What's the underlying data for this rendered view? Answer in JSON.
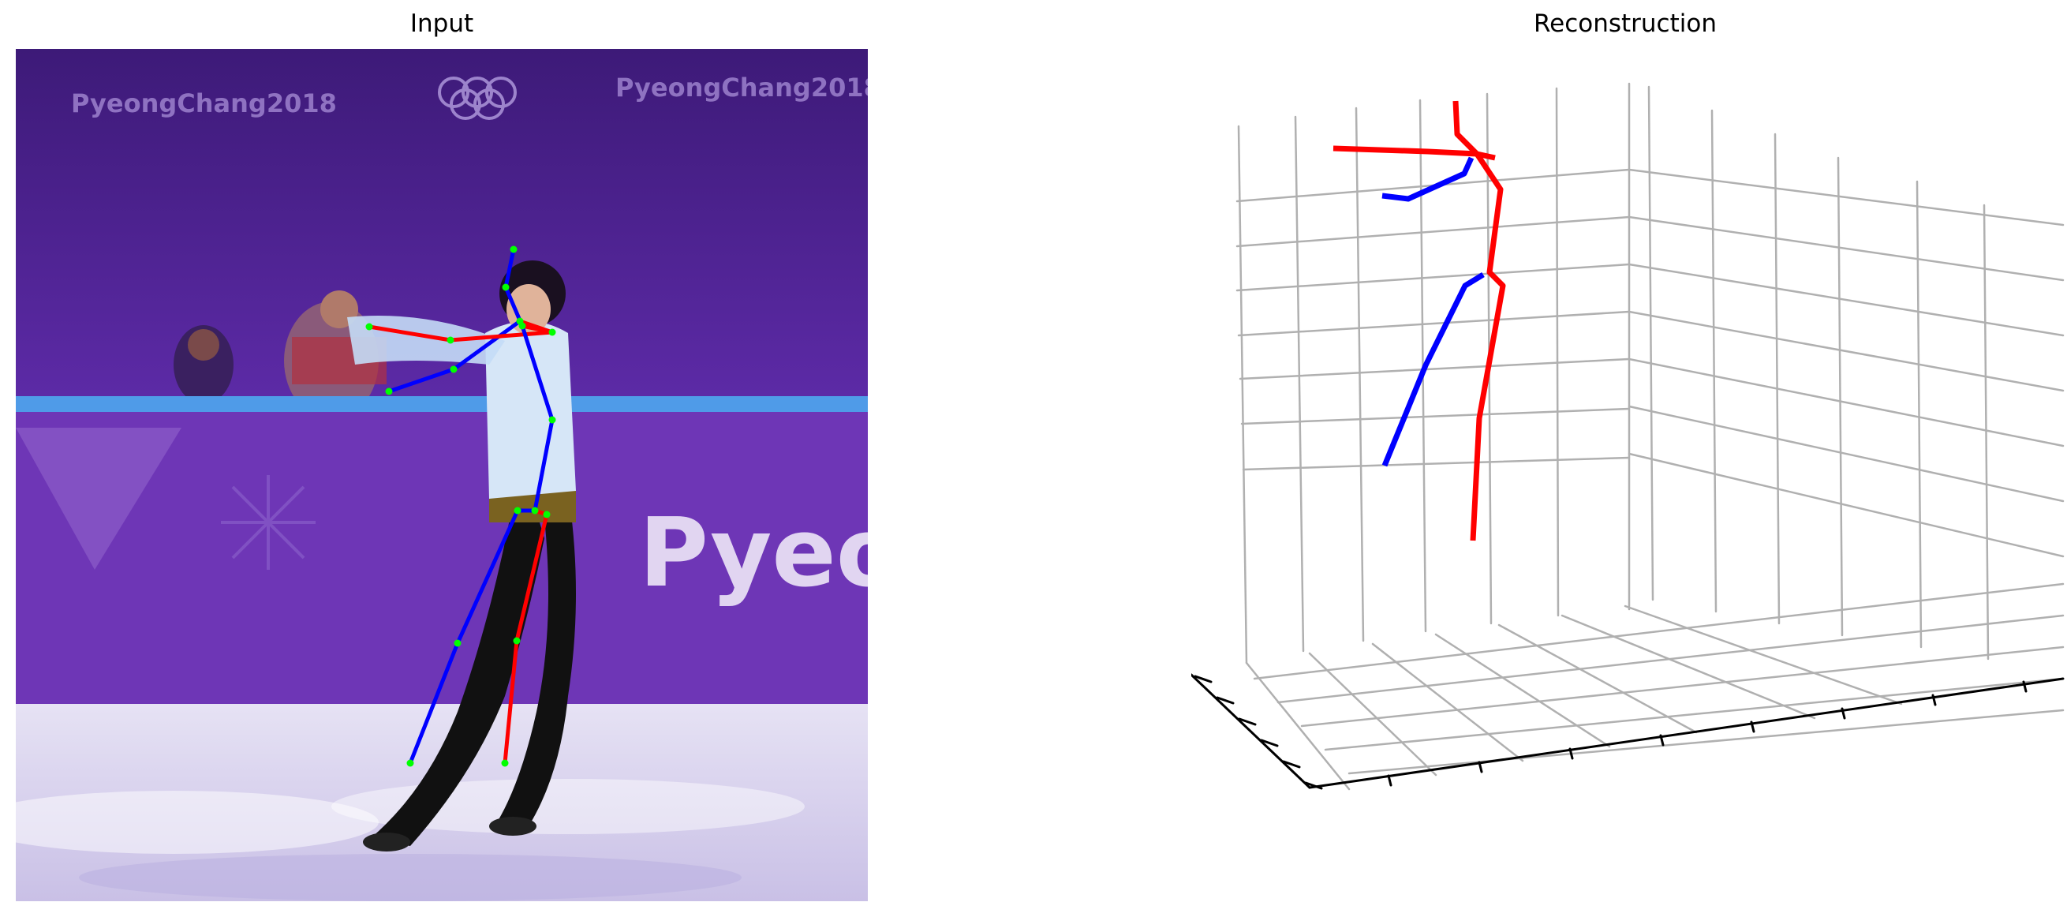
{
  "figure": {
    "input_title": "Input",
    "reconstruction_title": "Reconstruction"
  },
  "scene": {
    "banner_text": "PyeongChang2018",
    "board_text": "Pyeon",
    "colors": {
      "backdrop": "#5a2aa0",
      "board": "#6f36b8",
      "ice": "#d9d3ef",
      "skin_of_jacket": "#cfe3f5"
    }
  },
  "skeleton": {
    "colors": {
      "right": "#ff0000",
      "left": "#0000ff",
      "joint": "#00ff00",
      "grid": "#b0b0b0",
      "axis": "#000000"
    }
  }
}
